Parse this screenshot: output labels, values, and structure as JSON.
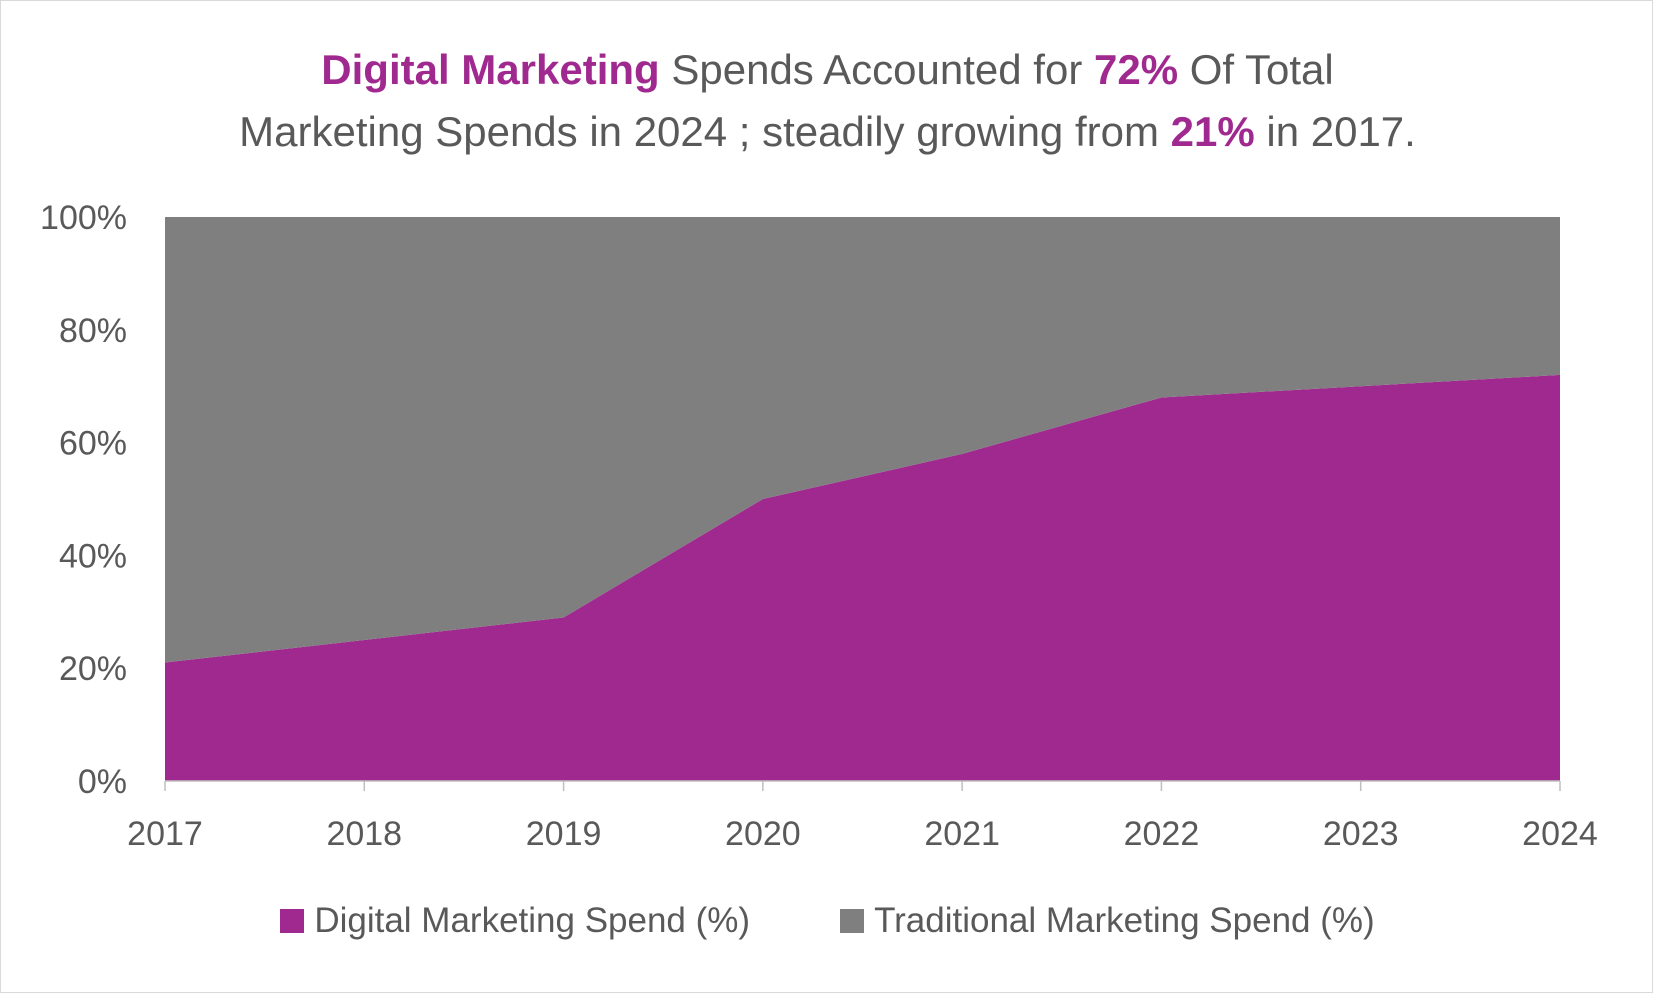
{
  "title": {
    "line1": [
      {
        "text": "Digital Marketing",
        "hl": true
      },
      {
        "text": " Spends Accounted for ",
        "hl": false
      },
      {
        "text": "72%",
        "hl": true
      },
      {
        "text": " Of Total",
        "hl": false
      }
    ],
    "line2": [
      {
        "text": "Marketing Spends in 2024 ; steadily growing from ",
        "hl": false
      },
      {
        "text": "21%",
        "hl": true
      },
      {
        "text": " in 2017.",
        "hl": false
      }
    ]
  },
  "colors": {
    "digital": "#a0298f",
    "traditional": "#7f7f7f",
    "text": "#595959",
    "highlight": "#a0298f"
  },
  "chart_data": {
    "type": "area",
    "stacked": true,
    "categories": [
      "2017",
      "2018",
      "2019",
      "2020",
      "2021",
      "2022",
      "2023",
      "2024"
    ],
    "series": [
      {
        "name": "Digital Marketing Spend (%)",
        "values": [
          21,
          25,
          29,
          50,
          58,
          68,
          70,
          72
        ]
      },
      {
        "name": "Traditional Marketing Spend (%)",
        "values": [
          79,
          75,
          71,
          50,
          42,
          32,
          30,
          28
        ]
      }
    ],
    "yticks": [
      "0%",
      "20%",
      "40%",
      "60%",
      "80%",
      "100%"
    ],
    "ylim": [
      0,
      100
    ],
    "legend_position": "bottom",
    "grid": false
  }
}
